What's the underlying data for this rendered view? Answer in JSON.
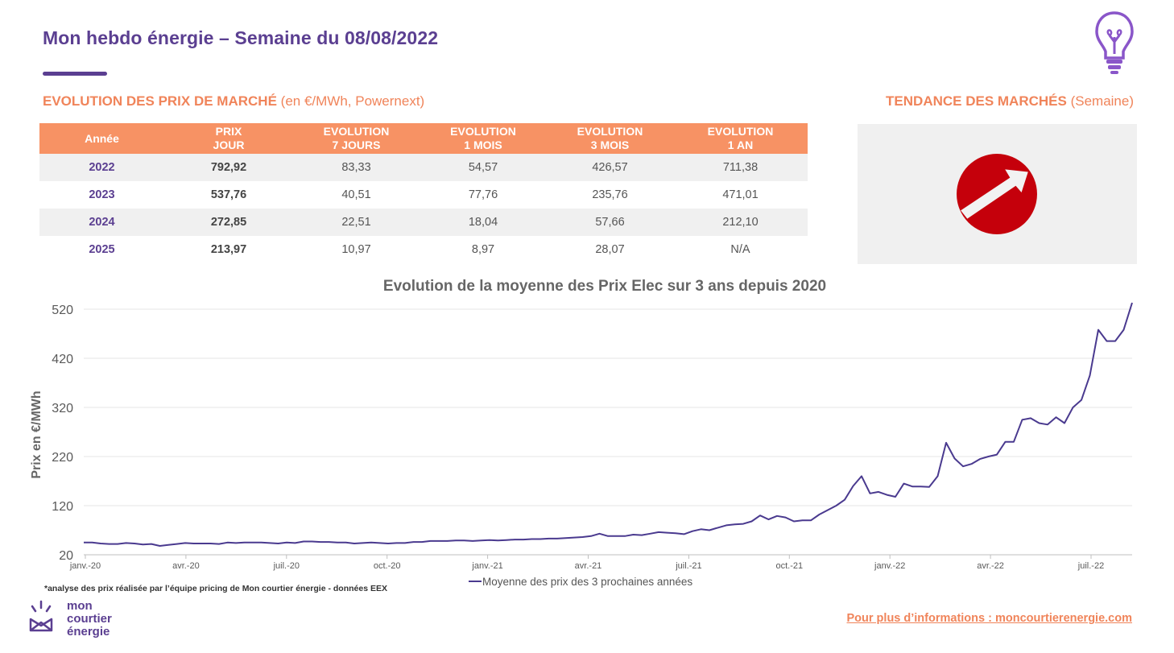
{
  "header": {
    "title": "Mon hebdo énergie – Semaine du 08/08/2022"
  },
  "market_section": {
    "heading": "EVOLUTION DES PRIX DE MARCHÉ",
    "unit_note": "(en €/MWh, Powernext)"
  },
  "trend_section": {
    "heading": "TENDANCE DES MARCHÉS",
    "period": "(Semaine)",
    "trend_icon": "arrow-up-right-icon",
    "trend_color": "#c5000b"
  },
  "table": {
    "headers": [
      [
        "Année"
      ],
      [
        "PRIX",
        "JOUR"
      ],
      [
        "EVOLUTION",
        "7 JOURS"
      ],
      [
        "EVOLUTION",
        "1 MOIS"
      ],
      [
        "EVOLUTION",
        "3 MOIS"
      ],
      [
        "EVOLUTION",
        "1 AN"
      ]
    ],
    "rows": [
      [
        "2022",
        "792,92",
        "83,33",
        "54,57",
        "426,57",
        "711,38"
      ],
      [
        "2023",
        "537,76",
        "40,51",
        "77,76",
        "235,76",
        "471,01"
      ],
      [
        "2024",
        "272,85",
        "22,51",
        "18,04",
        "57,66",
        "212,10"
      ],
      [
        "2025",
        "213,97",
        "10,97",
        "8,97",
        "28,07",
        "N/A"
      ]
    ]
  },
  "chart_data": {
    "type": "line",
    "title": "Evolution de la moyenne des Prix Elec sur 3 ans depuis 2020",
    "ylabel": "Prix en €/MWh",
    "xlabel": "",
    "ylim": [
      20,
      520
    ],
    "yticks": [
      20,
      120,
      220,
      320,
      420,
      520
    ],
    "xticks": [
      "janv.-20",
      "avr.-20",
      "juil.-20",
      "oct.-20",
      "janv.-21",
      "avr.-21",
      "juil.-21",
      "oct.-21",
      "janv.-22",
      "avr.-22",
      "juil.-22"
    ],
    "grid": true,
    "legend": "bottom",
    "series": [
      {
        "name": "Moyenne des prix des 3 prochaines années",
        "color": "#4a3a8f",
        "values": [
          45,
          45,
          43,
          42,
          42,
          44,
          43,
          41,
          42,
          38,
          40,
          42,
          44,
          43,
          43,
          43,
          42,
          45,
          44,
          45,
          45,
          45,
          44,
          43,
          45,
          44,
          47,
          47,
          46,
          46,
          45,
          45,
          43,
          44,
          45,
          44,
          43,
          44,
          44,
          46,
          46,
          48,
          48,
          48,
          49,
          49,
          48,
          49,
          50,
          49,
          50,
          51,
          51,
          52,
          52,
          53,
          53,
          54,
          55,
          56,
          58,
          63,
          58,
          58,
          58,
          61,
          60,
          63,
          66,
          65,
          64,
          62,
          68,
          72,
          70,
          75,
          80,
          82,
          83,
          88,
          100,
          92,
          99,
          96,
          88,
          90,
          90,
          102,
          111,
          120,
          132,
          160,
          180,
          145,
          148,
          142,
          138,
          165,
          159,
          159,
          158,
          180,
          248,
          216,
          200,
          205,
          215,
          220,
          224,
          250,
          250,
          295,
          298,
          288,
          285,
          300,
          288,
          320,
          335,
          385,
          478,
          455,
          455,
          478,
          535
        ]
      }
    ]
  },
  "footer": {
    "footnote": "*analyse des prix réalisée par l’équipe pricing de Mon courtier énergie -  données EEX",
    "brand_lines": [
      "mon",
      "courtier",
      "énergie"
    ],
    "link_text": "Pour plus d’informations : moncourtierenergie.com"
  },
  "colors": {
    "brand_purple": "#5b3f91",
    "accent_orange": "#f79264"
  }
}
